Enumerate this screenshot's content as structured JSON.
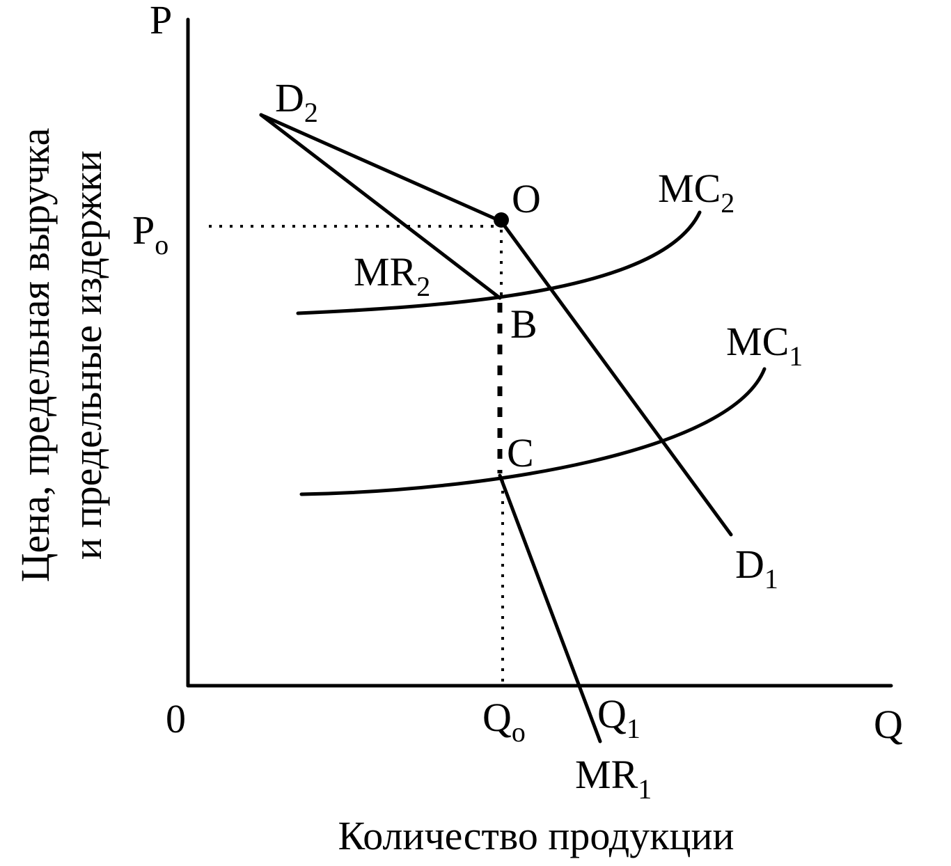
{
  "axes": {
    "y": "P",
    "x": "Q",
    "origin": "0"
  },
  "y_title": [
    "Цена, предельная выручка",
    "и предельные издержки"
  ],
  "x_title": "Количество продукции",
  "labels": {
    "p0": {
      "text": "P",
      "sub": "o"
    },
    "d2": {
      "text": "D",
      "sub": "2"
    },
    "o": "O",
    "mc2": {
      "text": "MC",
      "sub": "2"
    },
    "mr2": {
      "text": "MR",
      "sub": "2"
    },
    "b": "B",
    "mc1": {
      "text": "MC",
      "sub": "1"
    },
    "c": "C",
    "d1": {
      "text": "D",
      "sub": "1"
    },
    "q0": {
      "text": "Q",
      "sub": "o"
    },
    "q1": {
      "text": "Q",
      "sub": "1"
    },
    "mr1": {
      "text": "MR",
      "sub": "1"
    }
  }
}
